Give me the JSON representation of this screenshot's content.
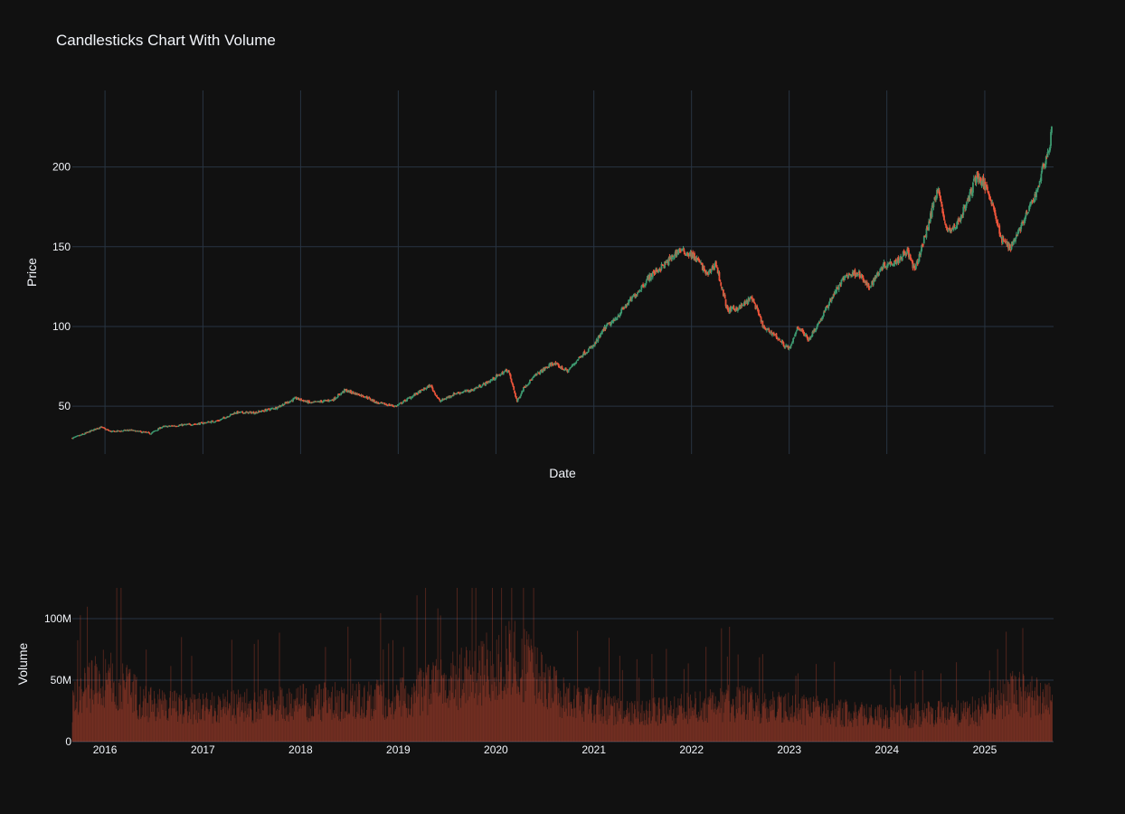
{
  "chart_data": [
    {
      "type": "candlestick",
      "title": "Candlesticks Chart With Volume",
      "xlabel": "Date",
      "ylabel": "Price",
      "x_range": [
        "2015-09-01",
        "2025-09-15"
      ],
      "ylim": [
        20,
        248
      ],
      "y_ticks": [
        50,
        100,
        150,
        200
      ],
      "y_tick_labels": [
        "50",
        "100",
        "150",
        "200"
      ],
      "grid": true,
      "increasing_color": "#3d9970",
      "decreasing_color": "#ef553b",
      "close_path": [
        [
          "2015-09-01",
          30
        ],
        [
          "2015-10-20",
          33
        ],
        [
          "2015-12-15",
          37
        ],
        [
          "2016-01-25",
          34
        ],
        [
          "2016-04-01",
          35
        ],
        [
          "2016-06-20",
          33
        ],
        [
          "2016-08-01",
          37
        ],
        [
          "2016-10-01",
          38
        ],
        [
          "2016-12-15",
          39
        ],
        [
          "2017-03-01",
          41
        ],
        [
          "2017-05-01",
          46
        ],
        [
          "2017-07-15",
          46
        ],
        [
          "2017-10-01",
          49
        ],
        [
          "2017-12-15",
          55
        ],
        [
          "2018-02-08",
          52
        ],
        [
          "2018-05-01",
          54
        ],
        [
          "2018-06-15",
          60
        ],
        [
          "2018-09-01",
          56
        ],
        [
          "2018-10-15",
          52
        ],
        [
          "2018-12-24",
          50
        ],
        [
          "2019-03-01",
          57
        ],
        [
          "2019-05-01",
          63
        ],
        [
          "2019-06-05",
          53
        ],
        [
          "2019-08-01",
          58
        ],
        [
          "2019-10-01",
          60
        ],
        [
          "2019-12-01",
          65
        ],
        [
          "2020-02-15",
          73
        ],
        [
          "2020-03-20",
          53
        ],
        [
          "2020-04-15",
          62
        ],
        [
          "2020-06-01",
          70
        ],
        [
          "2020-08-01",
          77
        ],
        [
          "2020-09-25",
          72
        ],
        [
          "2020-11-15",
          82
        ],
        [
          "2021-01-01",
          88
        ],
        [
          "2021-02-15",
          100
        ],
        [
          "2021-03-15",
          103
        ],
        [
          "2021-04-15",
          110
        ],
        [
          "2021-06-15",
          122
        ],
        [
          "2021-08-01",
          132
        ],
        [
          "2021-10-01",
          140
        ],
        [
          "2021-11-15",
          148
        ],
        [
          "2022-01-01",
          145
        ],
        [
          "2022-02-01",
          140
        ],
        [
          "2022-03-01",
          132
        ],
        [
          "2022-04-01",
          140
        ],
        [
          "2022-05-15",
          110
        ],
        [
          "2022-07-01",
          112
        ],
        [
          "2022-08-15",
          118
        ],
        [
          "2022-10-01",
          98
        ],
        [
          "2022-11-01",
          96
        ],
        [
          "2022-12-15",
          88
        ],
        [
          "2023-01-05",
          86
        ],
        [
          "2023-02-01",
          100
        ],
        [
          "2023-03-15",
          92
        ],
        [
          "2023-05-01",
          105
        ],
        [
          "2023-06-15",
          120
        ],
        [
          "2023-08-01",
          132
        ],
        [
          "2023-09-15",
          134
        ],
        [
          "2023-10-25",
          124
        ],
        [
          "2023-12-15",
          138
        ],
        [
          "2024-02-15",
          142
        ],
        [
          "2024-03-15",
          148
        ],
        [
          "2024-04-15",
          135
        ],
        [
          "2024-06-01",
          162
        ],
        [
          "2024-07-10",
          188
        ],
        [
          "2024-08-05",
          163
        ],
        [
          "2024-09-01",
          160
        ],
        [
          "2024-10-01",
          168
        ],
        [
          "2024-11-01",
          180
        ],
        [
          "2024-12-01",
          195
        ],
        [
          "2025-01-15",
          185
        ],
        [
          "2025-02-10",
          170
        ],
        [
          "2025-03-01",
          155
        ],
        [
          "2025-04-08",
          150
        ],
        [
          "2025-05-01",
          158
        ],
        [
          "2025-06-01",
          168
        ],
        [
          "2025-07-15",
          185
        ],
        [
          "2025-08-15",
          205
        ],
        [
          "2025-09-01",
          212
        ],
        [
          "2025-09-10",
          232
        ]
      ]
    },
    {
      "type": "bar",
      "xlabel": "",
      "ylabel": "Volume",
      "ylim": [
        0,
        125000000
      ],
      "y_ticks": [
        0,
        50000000,
        100000000
      ],
      "y_tick_labels": [
        "0",
        "50M",
        "100M"
      ],
      "x_ticks": [
        "2016-01-01",
        "2017-01-01",
        "2018-01-01",
        "2019-01-01",
        "2020-01-01",
        "2021-01-01",
        "2022-01-01",
        "2023-01-01",
        "2024-01-01",
        "2025-01-01"
      ],
      "x_tick_labels": [
        "2016",
        "2017",
        "2018",
        "2019",
        "2020",
        "2021",
        "2022",
        "2023",
        "2024",
        "2025"
      ],
      "bar_color": "#ef553b",
      "volume_path": [
        [
          "2015-09-01",
          35000000
        ],
        [
          "2016-01-01",
          60000000
        ],
        [
          "2016-06-01",
          35000000
        ],
        [
          "2017-01-01",
          30000000
        ],
        [
          "2018-01-01",
          35000000
        ],
        [
          "2019-01-01",
          38000000
        ],
        [
          "2020-03-15",
          75000000
        ],
        [
          "2020-09-01",
          40000000
        ],
        [
          "2021-06-01",
          25000000
        ],
        [
          "2022-01-01",
          30000000
        ],
        [
          "2022-06-01",
          35000000
        ],
        [
          "2023-01-01",
          30000000
        ],
        [
          "2024-01-01",
          22000000
        ],
        [
          "2025-01-01",
          28000000
        ],
        [
          "2025-04-10",
          45000000
        ],
        [
          "2025-09-10",
          35000000
        ]
      ]
    }
  ]
}
